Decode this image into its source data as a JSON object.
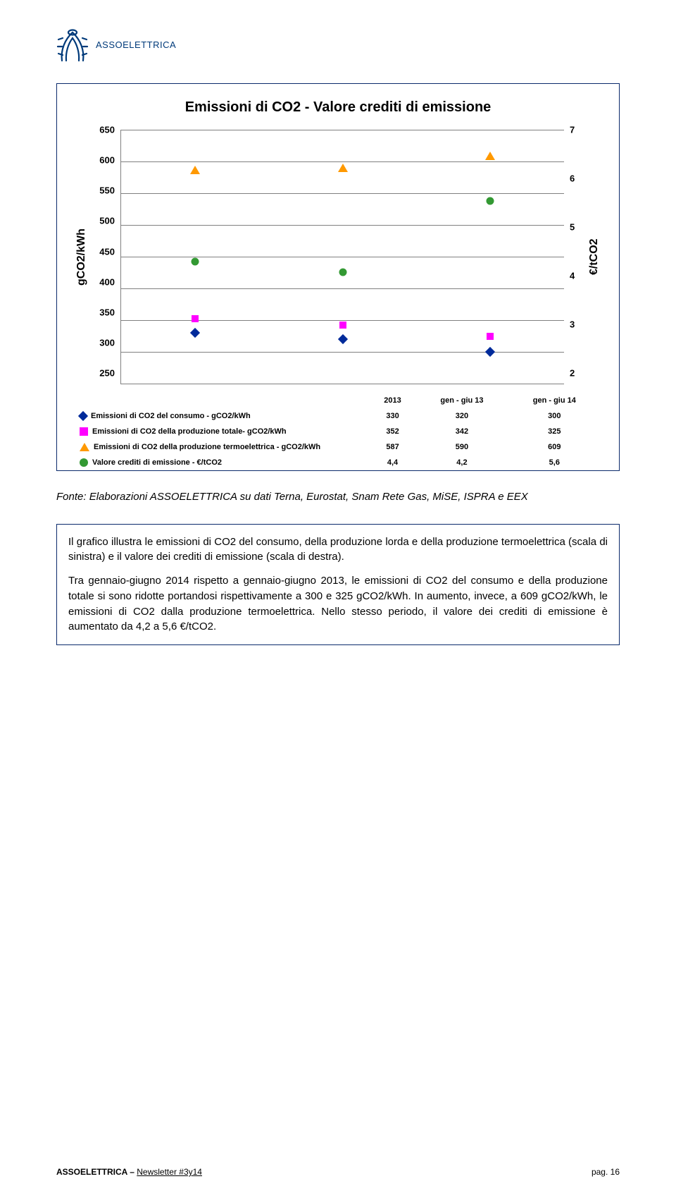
{
  "brand": "ASSOELETTRICA",
  "logo_color": "#003a7a",
  "chart": {
    "title": "Emissioni di CO2 - Valore crediti di emissione",
    "type": "scatter",
    "background_color": "#ffffff",
    "border_color": "#0a2a6b",
    "grid_color": "#808080",
    "title_fontsize": 20,
    "axis_label_fontsize": 16,
    "tick_fontsize": 13,
    "legend_fontsize": 11,
    "y_left": {
      "label": "gCO2/kWh",
      "min": 250,
      "max": 650,
      "ticks": [
        650,
        600,
        550,
        500,
        450,
        400,
        350,
        300,
        250
      ]
    },
    "y_right": {
      "label": "€/tCO2",
      "min": 2,
      "max": 7,
      "ticks": [
        7,
        6,
        5,
        4,
        3,
        2
      ]
    },
    "categories": [
      "2013",
      "gen - giu 13",
      "gen - giu 14"
    ],
    "series": [
      {
        "name": "Emissioni di CO2 del consumo - gCO2/kWh",
        "marker": "diamond",
        "color": "#002a9a",
        "marker_size": 10,
        "axis": "left",
        "values": [
          330,
          320,
          300
        ]
      },
      {
        "name": "Emissioni di CO2 della produzione totale- gCO2/kWh",
        "marker": "square",
        "color": "#ff00ff",
        "marker_size": 10,
        "axis": "left",
        "values": [
          352,
          342,
          325
        ]
      },
      {
        "name": "Emissioni di CO2 della produzione termoelettrica - gCO2/kWh",
        "marker": "triangle",
        "color": "#ff9900",
        "marker_size": 12,
        "axis": "left",
        "values": [
          587,
          590,
          609
        ]
      },
      {
        "name": "Valore crediti di emissione - €/tCO2",
        "marker": "circle",
        "color": "#339933",
        "marker_size": 11,
        "axis": "right",
        "values": [
          4.4,
          4.2,
          5.6
        ],
        "display_values": [
          "4,4",
          "4,2",
          "5,6"
        ]
      }
    ]
  },
  "source_line": "Fonte: Elaborazioni ASSOELETTRICA su dati Terna, Eurostat, Snam Rete Gas, MiSE, ISPRA e EEX",
  "body": {
    "p1": "Il grafico illustra le emissioni di CO2 del consumo, della produzione lorda e della produzione termoelettrica (scala di sinistra) e il valore dei crediti di emissione (scala di destra).",
    "p2": "Tra gennaio-giugno 2014 rispetto a gennaio-giugno 2013, le emissioni di CO2 del consumo e della produzione totale si sono ridotte portandosi rispettivamente a 300 e 325 gCO2/kWh. In aumento, invece, a 609 gCO2/kWh, le emissioni di CO2 dalla produzione termoelettrica. Nello stesso periodo, il valore dei crediti di emissione è aumentato da 4,2 a 5,6 €/tCO2."
  },
  "footer": {
    "brand": "ASSOELETTRICA",
    "sep": " – ",
    "issue": "Newsletter #3y14",
    "page_label": "pag. ",
    "page_num": "16"
  }
}
